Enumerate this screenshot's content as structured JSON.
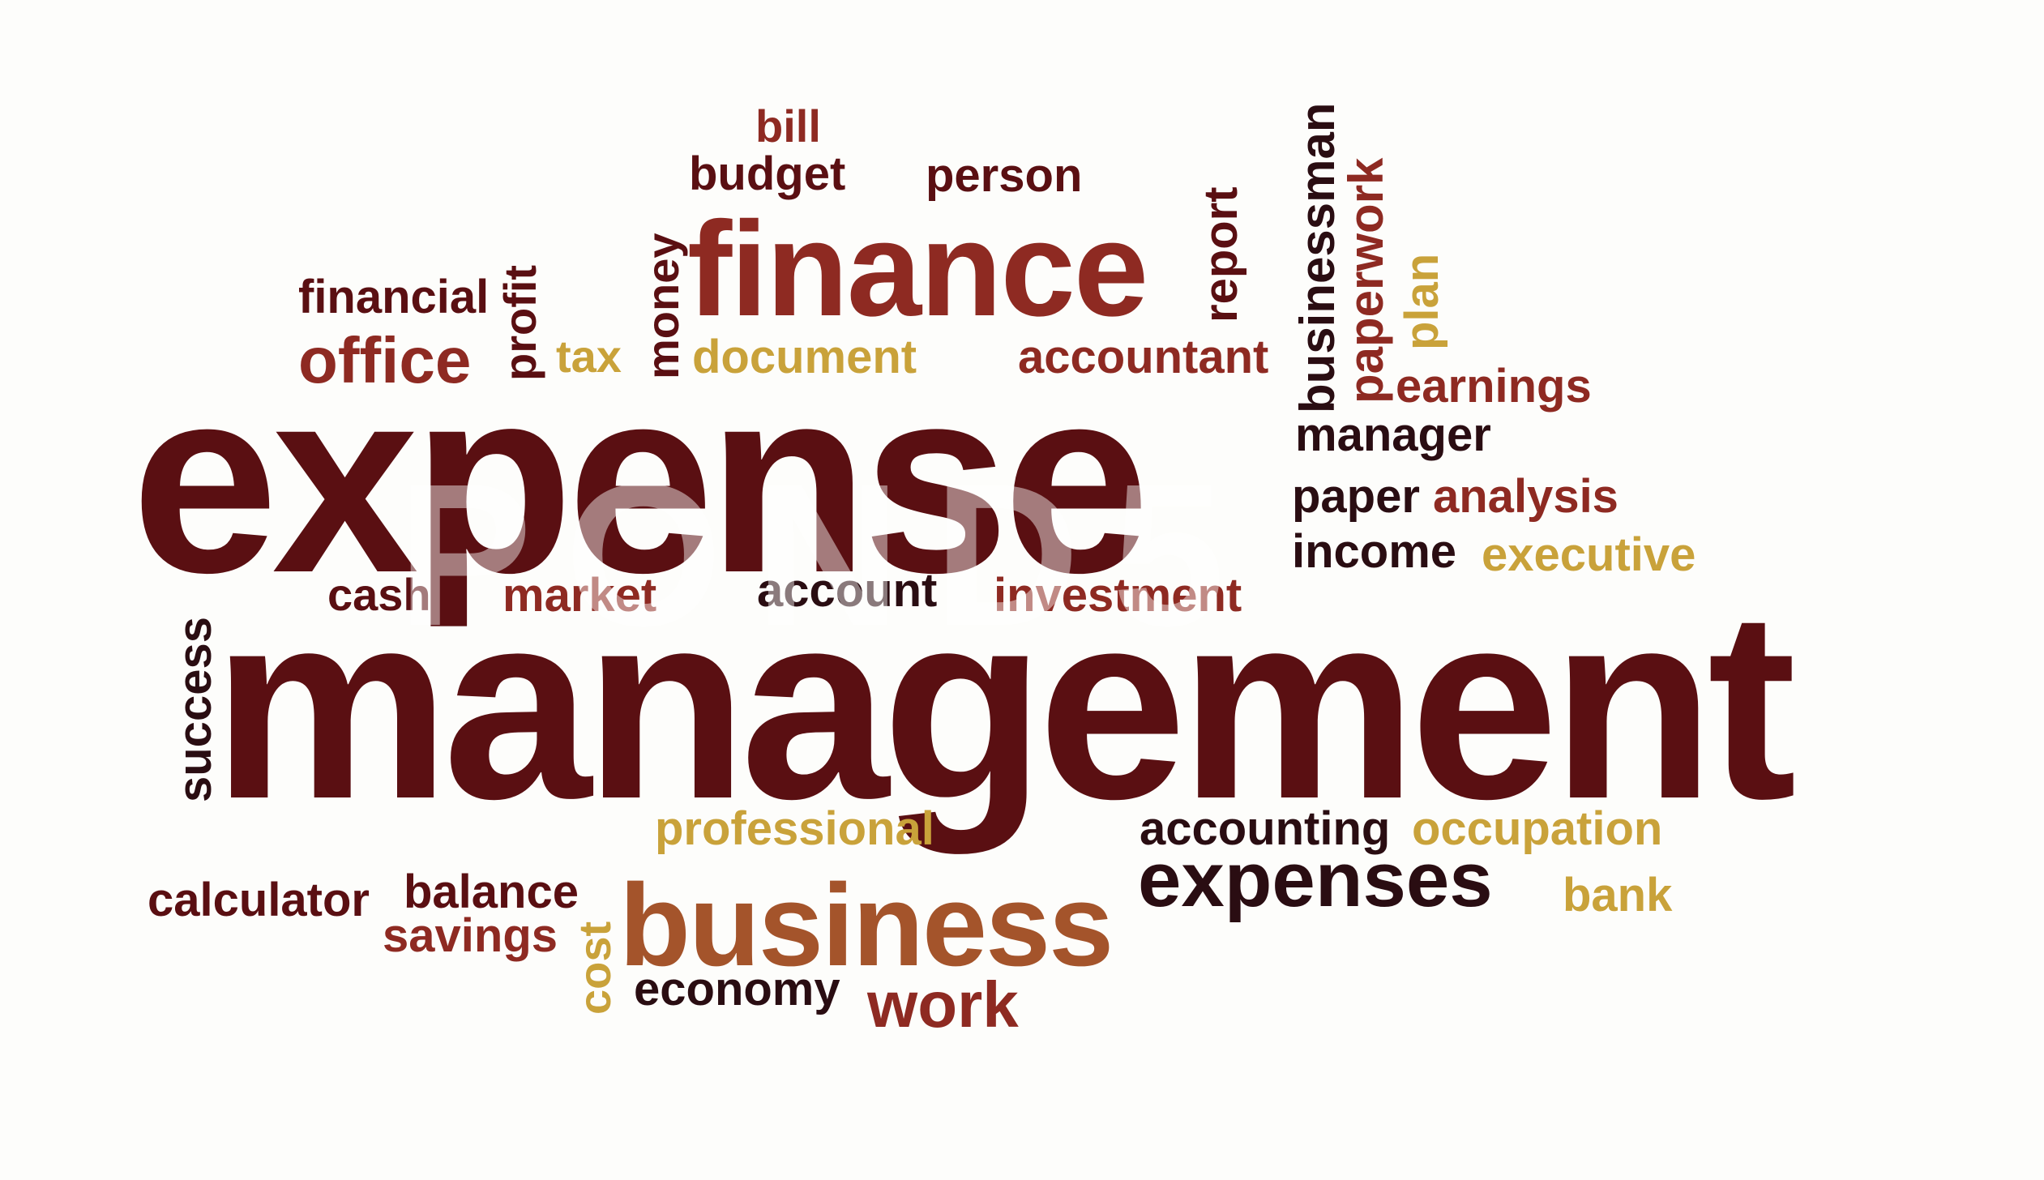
{
  "words": {
    "bill": "bill",
    "budget": "budget",
    "person": "person",
    "finance": "finance",
    "report": "report",
    "businessman": "businessman",
    "paperwork": "paperwork",
    "plan": "plan",
    "financial": "financial",
    "profit": "profit",
    "money": "money",
    "office": "office",
    "tax": "tax",
    "document": "document",
    "accountant": "accountant",
    "earnings": "earnings",
    "expense": "expense",
    "manager": "manager",
    "paper": "paper",
    "analysis": "analysis",
    "income": "income",
    "executive": "executive",
    "cash": "cash",
    "market": "market",
    "account": "account",
    "investment": "investment",
    "success": "success",
    "management": "management",
    "professional": "professional",
    "accounting": "accounting",
    "occupation": "occupation",
    "expenses": "expenses",
    "bank": "bank",
    "calculator": "calculator",
    "balance": "balance",
    "savings": "savings",
    "cost": "cost",
    "business": "business",
    "economy": "economy",
    "work": "work"
  },
  "watermark": "POND5",
  "colors": {
    "background": "#fdfdfb",
    "maroon": "#5a0f12",
    "brick": "#8e2a22",
    "mustard": "#c9a23a",
    "near_black": "#2a0d12",
    "rust": "#a4542b"
  }
}
